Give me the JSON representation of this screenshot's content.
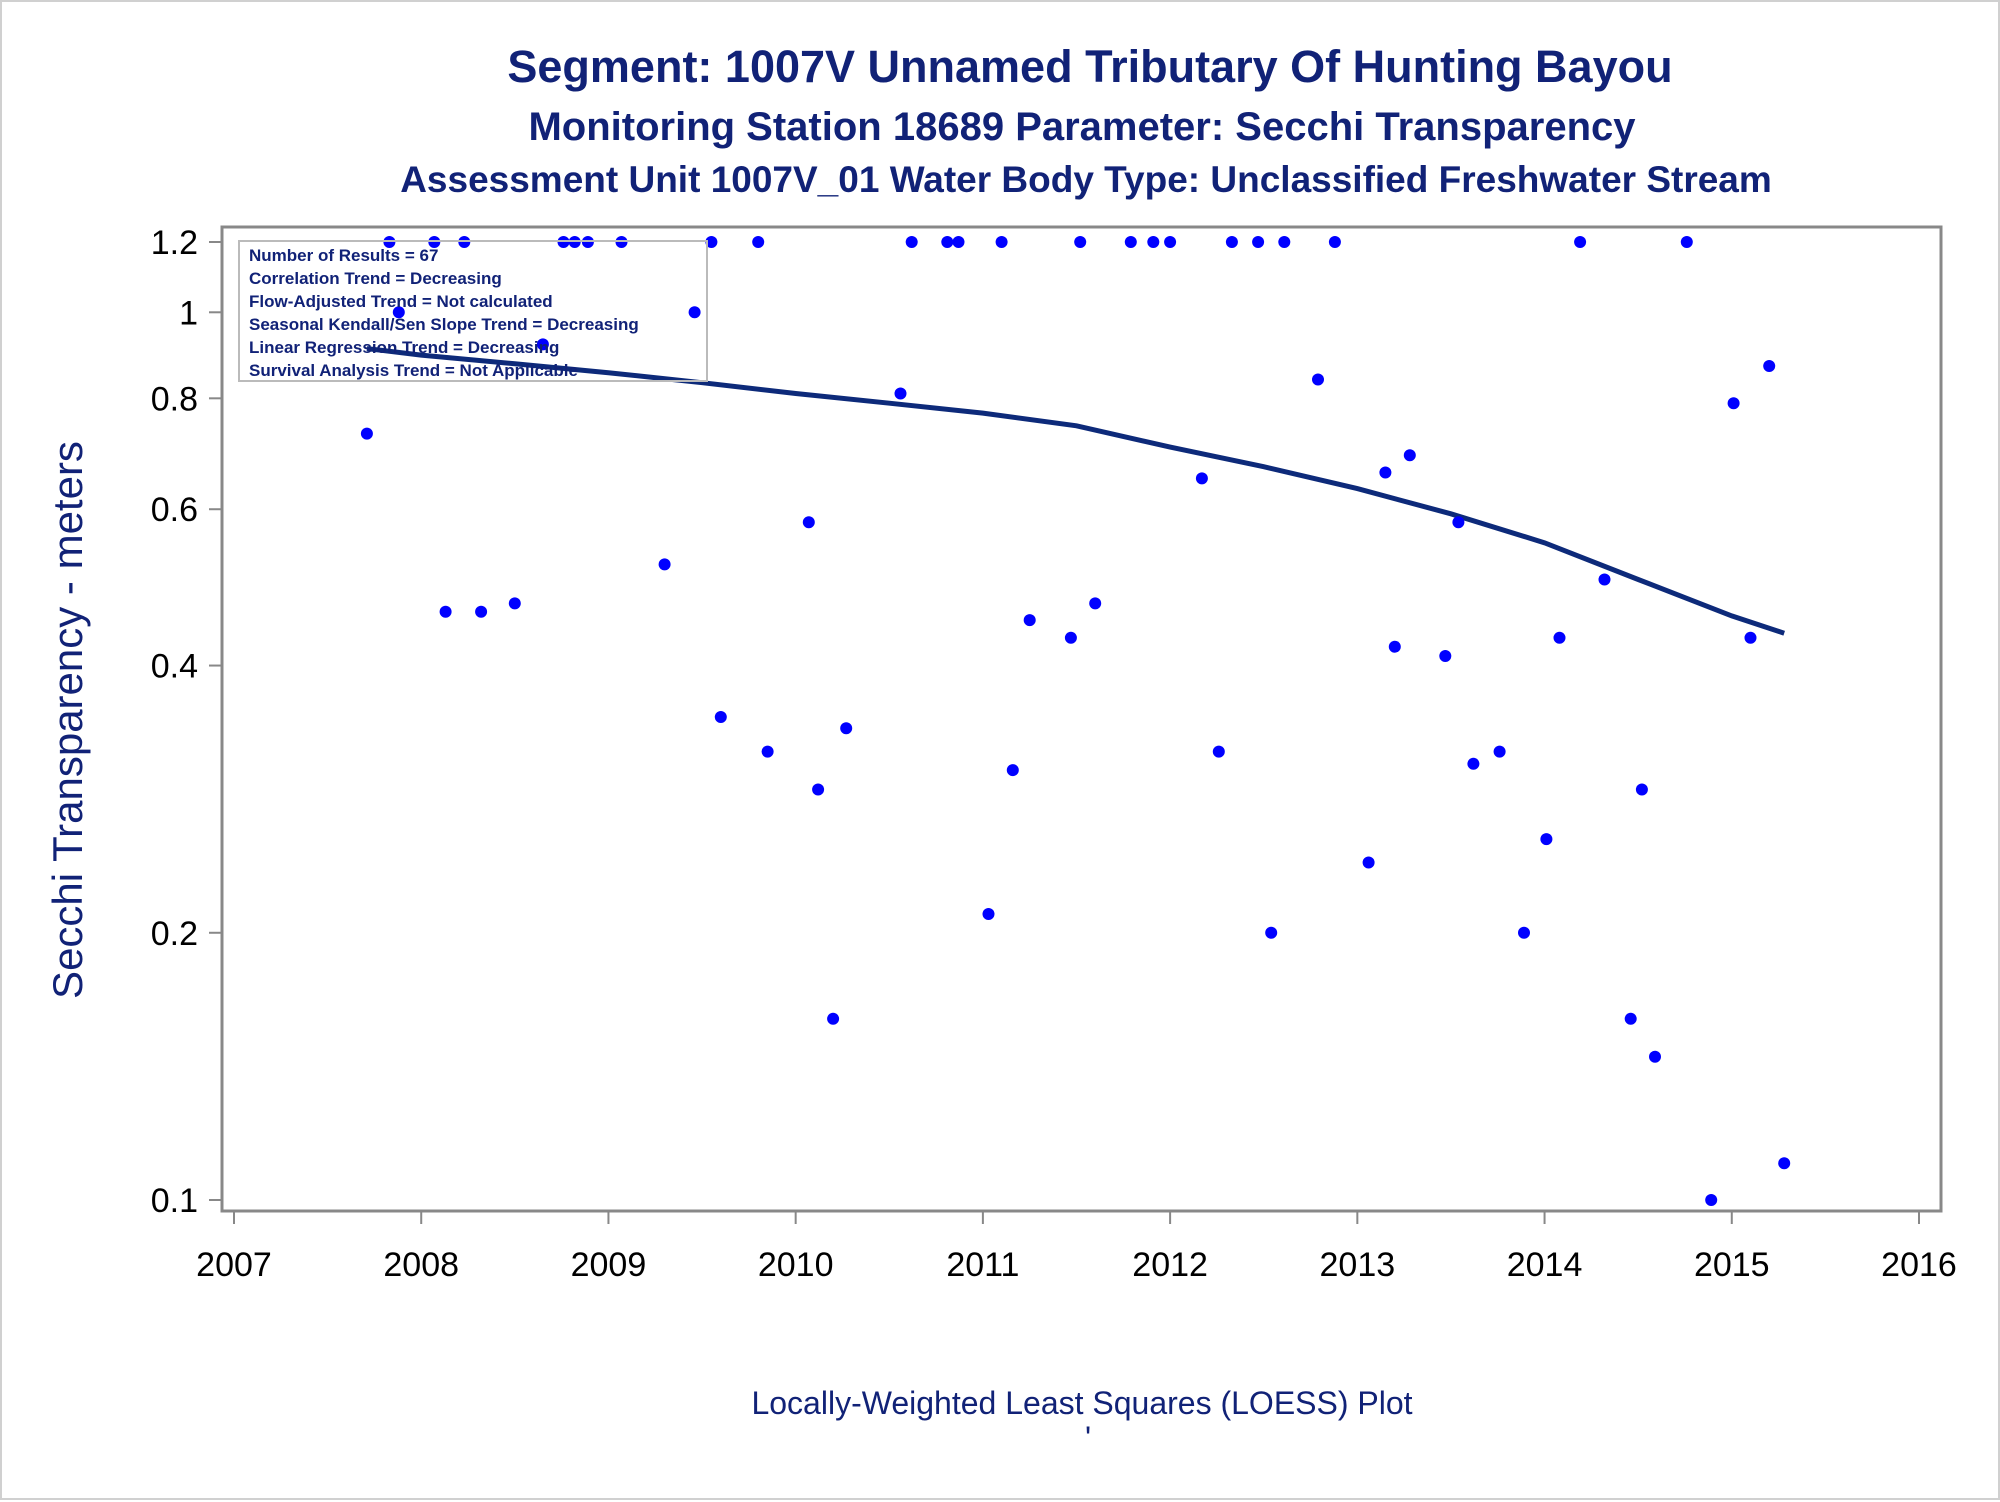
{
  "titles": {
    "line1": "Segment: 1007V  Unnamed Tributary Of Hunting Bayou",
    "line2": "Monitoring Station 18689 Parameter: Secchi Transparency",
    "line3": "Assessment Unit 1007V_01   Water Body Type: Unclassified Freshwater Stream"
  },
  "footnote": "Locally-Weighted Least Squares (LOESS) Plot",
  "footnote_mark": "'",
  "stats_box": [
    "Number of Results = 67",
    "Correlation Trend = Decreasing",
    "Flow-Adjusted Trend = Not calculated",
    "Seasonal Kendall/Sen Slope Trend = Decreasing",
    "Linear Regression Trend = Decreasing",
    "Survival Analysis Trend = Not Applicable"
  ],
  "colors": {
    "points": "#0000ff",
    "loess_line": "#0d2a7a",
    "text": "#112277",
    "axis": "#888888"
  },
  "chart_data": {
    "type": "scatter",
    "title": "Segment: 1007V  Unnamed Tributary Of Hunting Bayou",
    "xlabel": "",
    "ylabel": "Secchi Transparency - meters",
    "xlim": [
      2007,
      2016
    ],
    "ylim": [
      0.1,
      1.2
    ],
    "yscale": "log",
    "grid": false,
    "xticks": [
      "2007",
      "2008",
      "2009",
      "2010",
      "2011",
      "2012",
      "2013",
      "2014",
      "2015",
      "2016"
    ],
    "yticks": [
      "0.1",
      "0.2",
      "0.4",
      "0.6",
      "0.8",
      "1",
      "1.2"
    ],
    "points": [
      [
        2007.71,
        0.73
      ],
      [
        2007.83,
        1.2
      ],
      [
        2007.88,
        1.0
      ],
      [
        2008.07,
        1.2
      ],
      [
        2008.13,
        0.46
      ],
      [
        2008.23,
        1.2
      ],
      [
        2008.32,
        0.46
      ],
      [
        2008.5,
        0.47
      ],
      [
        2008.65,
        0.92
      ],
      [
        2008.76,
        1.2
      ],
      [
        2008.82,
        1.2
      ],
      [
        2008.89,
        1.2
      ],
      [
        2009.07,
        1.2
      ],
      [
        2009.3,
        0.52
      ],
      [
        2009.46,
        1.0
      ],
      [
        2009.55,
        1.2
      ],
      [
        2009.6,
        0.35
      ],
      [
        2009.8,
        1.2
      ],
      [
        2009.85,
        0.32
      ],
      [
        2010.07,
        0.58
      ],
      [
        2010.12,
        0.29
      ],
      [
        2010.2,
        0.16
      ],
      [
        2010.27,
        0.34
      ],
      [
        2010.56,
        0.81
      ],
      [
        2010.62,
        1.2
      ],
      [
        2010.81,
        1.2
      ],
      [
        2010.87,
        1.2
      ],
      [
        2011.03,
        0.21
      ],
      [
        2011.1,
        1.2
      ],
      [
        2011.16,
        0.305
      ],
      [
        2011.25,
        0.45
      ],
      [
        2011.47,
        0.43
      ],
      [
        2011.52,
        1.2
      ],
      [
        2011.6,
        0.47
      ],
      [
        2011.79,
        1.2
      ],
      [
        2011.91,
        1.2
      ],
      [
        2012.0,
        1.2
      ],
      [
        2012.17,
        0.65
      ],
      [
        2012.26,
        0.32
      ],
      [
        2012.33,
        1.2
      ],
      [
        2012.47,
        1.2
      ],
      [
        2012.54,
        0.2
      ],
      [
        2012.61,
        1.2
      ],
      [
        2012.79,
        0.84
      ],
      [
        2012.88,
        1.2
      ],
      [
        2013.06,
        0.24
      ],
      [
        2013.15,
        0.66
      ],
      [
        2013.2,
        0.42
      ],
      [
        2013.28,
        0.69
      ],
      [
        2013.47,
        0.41
      ],
      [
        2013.54,
        0.58
      ],
      [
        2013.62,
        0.31
      ],
      [
        2013.76,
        0.32
      ],
      [
        2013.89,
        0.2
      ],
      [
        2014.01,
        0.255
      ],
      [
        2014.08,
        0.43
      ],
      [
        2014.19,
        1.2
      ],
      [
        2014.32,
        0.5
      ],
      [
        2014.46,
        0.16
      ],
      [
        2014.52,
        0.29
      ],
      [
        2014.59,
        0.145
      ],
      [
        2014.76,
        1.2
      ],
      [
        2014.89,
        0.1
      ],
      [
        2015.01,
        0.79
      ],
      [
        2015.1,
        0.43
      ],
      [
        2015.2,
        0.87
      ],
      [
        2015.28,
        0.11
      ]
    ],
    "loess": [
      [
        2007.71,
        0.91
      ],
      [
        2008.0,
        0.895
      ],
      [
        2008.5,
        0.875
      ],
      [
        2009.0,
        0.855
      ],
      [
        2009.5,
        0.833
      ],
      [
        2010.0,
        0.81
      ],
      [
        2010.5,
        0.79
      ],
      [
        2011.0,
        0.77
      ],
      [
        2011.5,
        0.745
      ],
      [
        2012.0,
        0.705
      ],
      [
        2012.5,
        0.67
      ],
      [
        2013.0,
        0.633
      ],
      [
        2013.5,
        0.593
      ],
      [
        2014.0,
        0.55
      ],
      [
        2014.5,
        0.5
      ],
      [
        2015.0,
        0.455
      ],
      [
        2015.28,
        0.435
      ]
    ]
  }
}
